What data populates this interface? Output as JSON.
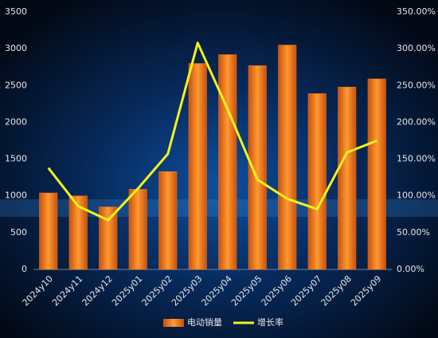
{
  "chart_data": {
    "type": "bar",
    "categories": [
      "2024y10",
      "2024y11",
      "2024y12",
      "2025y01",
      "2025y02",
      "2025y03",
      "2025y04",
      "2025y05",
      "2025y06",
      "2025y07",
      "2025y08",
      "2025y09"
    ],
    "series": [
      {
        "name": "电动销量",
        "type": "bar",
        "color": "#f07a1a",
        "values": [
          1040,
          1000,
          850,
          1090,
          1330,
          2800,
          2920,
          2770,
          3050,
          2390,
          2480,
          2590
        ]
      },
      {
        "name": "增长率",
        "type": "line",
        "axis": "y2",
        "color": "#f2f21c",
        "values": [
          138,
          86,
          67,
          110,
          157,
          308,
          218,
          122,
          96,
          82,
          159,
          175
        ]
      }
    ],
    "ylim": [
      0,
      3500
    ],
    "yticks": [
      0,
      500,
      1000,
      1500,
      2000,
      2500,
      3000,
      3500
    ],
    "y2lim": [
      0,
      350
    ],
    "y2ticks": [
      {
        "value": 0,
        "label": "0.00%"
      },
      {
        "value": 50,
        "label": "50.00%"
      },
      {
        "value": 100,
        "label": "100.00%"
      },
      {
        "value": 150,
        "label": "150.00%"
      },
      {
        "value": 200,
        "label": "200.00%"
      },
      {
        "value": 250,
        "label": "250.00%"
      },
      {
        "value": 300,
        "label": "300.00%"
      },
      {
        "value": 350,
        "label": "350.00%"
      }
    ],
    "legend": "bottom"
  }
}
